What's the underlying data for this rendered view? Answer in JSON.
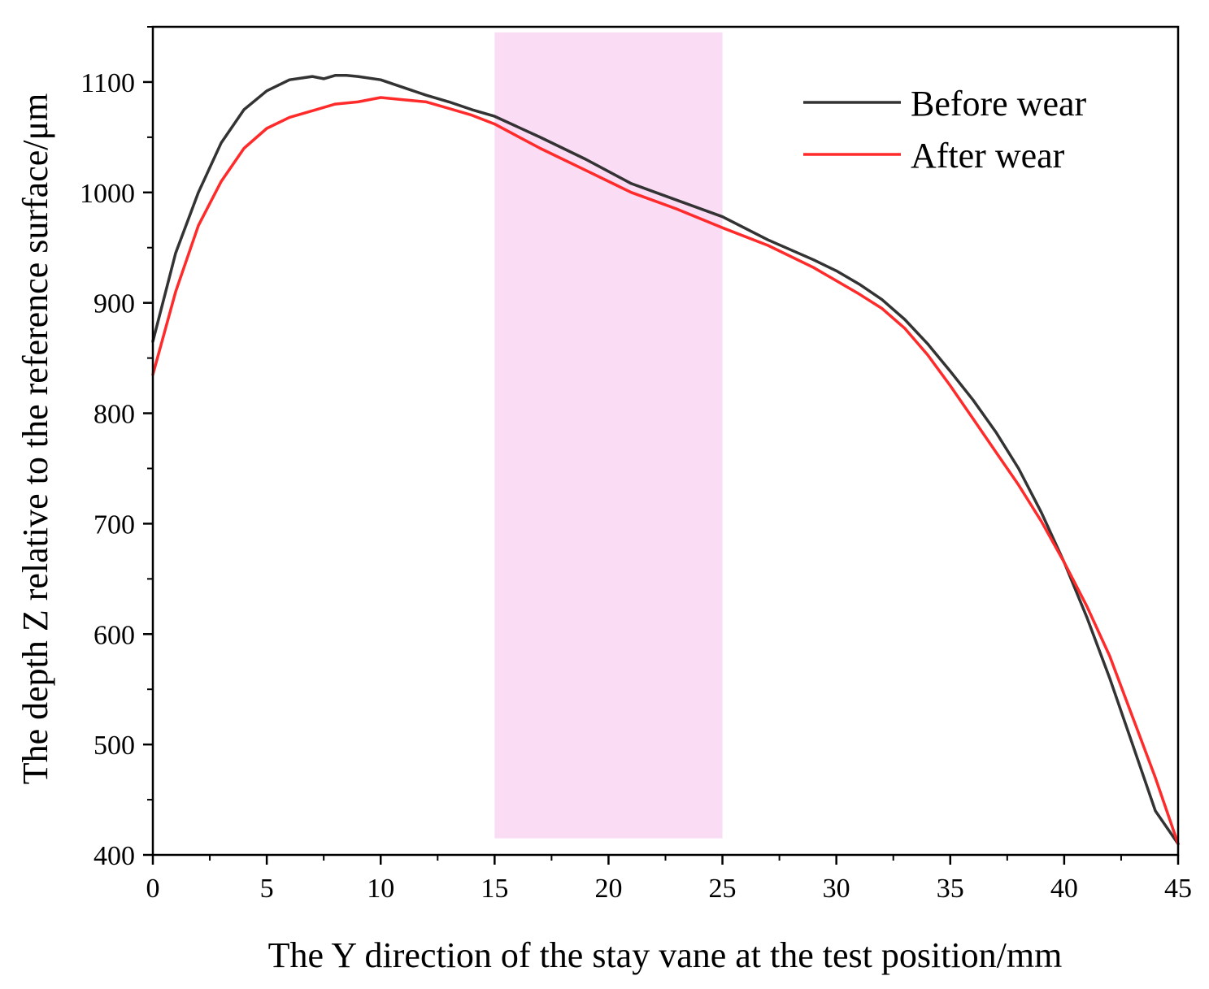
{
  "chart_data": {
    "type": "line",
    "title": "",
    "xlabel": "The Y direction of the stay vane at the test position/mm",
    "ylabel": "The depth Z relative to the reference surface/μm",
    "xlim": [
      0,
      45
    ],
    "ylim": [
      400,
      1150
    ],
    "xticks": [
      0,
      5,
      10,
      15,
      20,
      25,
      30,
      35,
      40,
      45
    ],
    "yticks": [
      400,
      500,
      600,
      700,
      800,
      900,
      1000,
      1100
    ],
    "grid": false,
    "legend_position": "top-right",
    "highlight_region": {
      "x": [
        15,
        25
      ],
      "y": [
        415,
        1145
      ],
      "color": "#fadcf5"
    },
    "series": [
      {
        "name": "Before wear",
        "color": "#333333",
        "x": [
          0,
          1,
          2,
          3,
          4,
          5,
          6,
          7,
          7.5,
          8,
          8.5,
          9,
          10,
          11,
          12,
          13,
          14,
          15,
          17,
          19,
          21,
          23,
          25,
          27,
          29,
          30,
          31,
          32,
          33,
          34,
          35,
          36,
          37,
          38,
          39,
          40,
          41,
          42,
          43,
          44,
          45
        ],
        "y": [
          865,
          945,
          1000,
          1045,
          1075,
          1092,
          1102,
          1105,
          1103,
          1106,
          1106,
          1105,
          1102,
          1095,
          1088,
          1082,
          1075,
          1069,
          1050,
          1030,
          1008,
          993,
          978,
          957,
          939,
          929,
          917,
          903,
          885,
          863,
          838,
          812,
          783,
          750,
          710,
          665,
          615,
          560,
          500,
          440,
          410
        ]
      },
      {
        "name": "After wear",
        "color": "#ff2a2a",
        "x": [
          0,
          1,
          2,
          3,
          4,
          5,
          6,
          7,
          8,
          9,
          10,
          11,
          12,
          13,
          14,
          15,
          17,
          19,
          21,
          23,
          25,
          27,
          29,
          30,
          31,
          32,
          33,
          34,
          35,
          36,
          37,
          38,
          39,
          40,
          41,
          42,
          43,
          44,
          45
        ],
        "y": [
          835,
          910,
          970,
          1010,
          1040,
          1058,
          1068,
          1074,
          1080,
          1082,
          1086,
          1084,
          1082,
          1076,
          1070,
          1062,
          1040,
          1020,
          1000,
          985,
          968,
          952,
          932,
          920,
          908,
          895,
          877,
          853,
          825,
          795,
          765,
          735,
          702,
          665,
          625,
          580,
          525,
          470,
          410
        ]
      }
    ]
  }
}
